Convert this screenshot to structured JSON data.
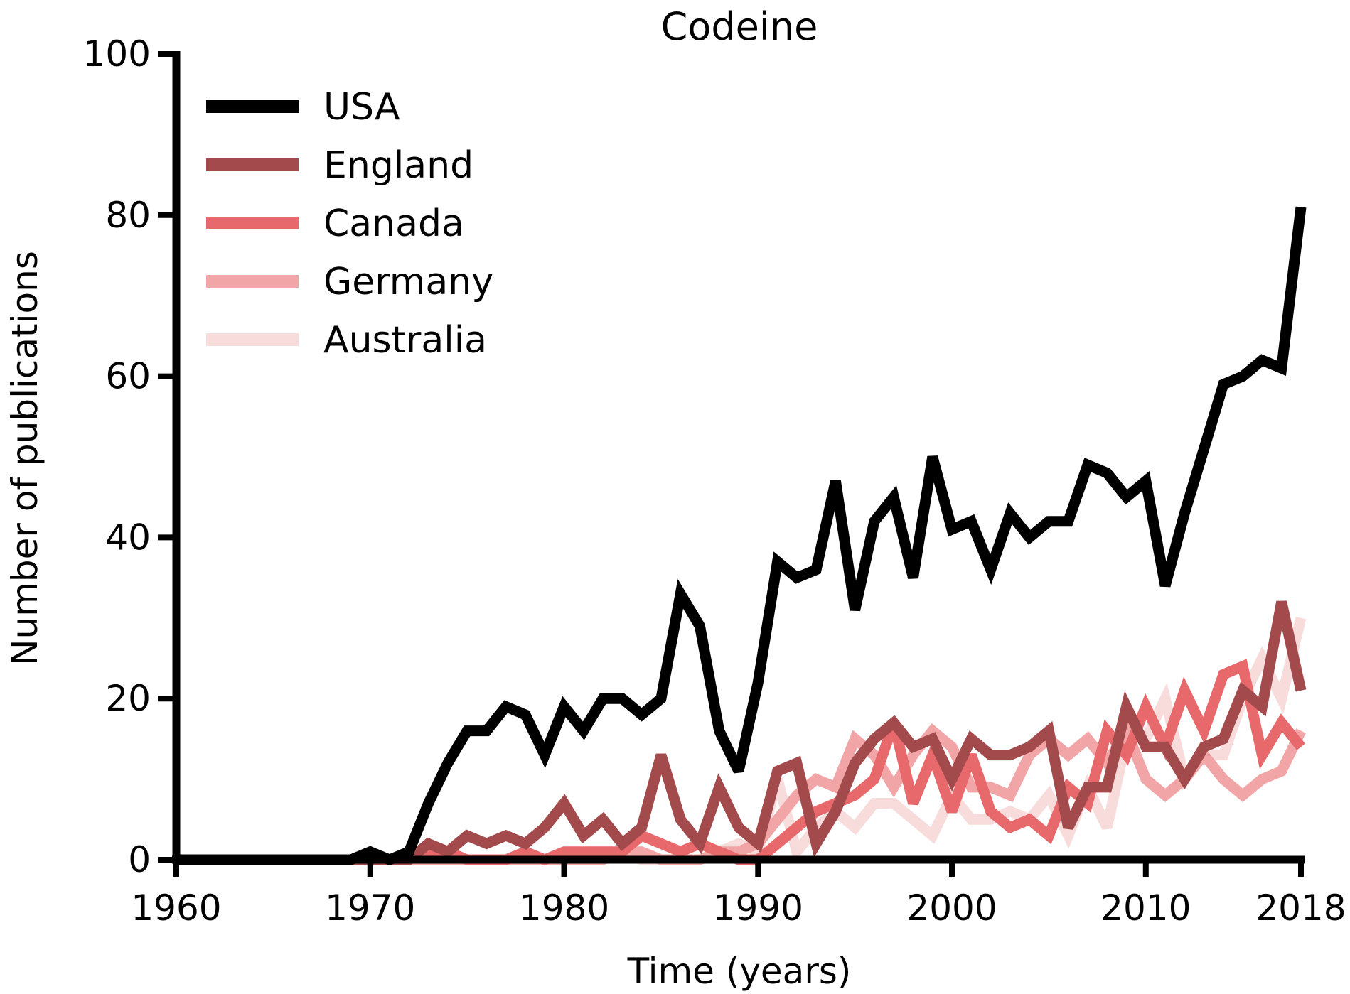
{
  "chart_data": {
    "type": "line",
    "title": "Codeine",
    "xlabel": "Time (years)",
    "ylabel": "Number of publications",
    "xlim": [
      1960,
      2018
    ],
    "ylim": [
      0,
      100
    ],
    "x_ticks": [
      "1960",
      "1970",
      "1980",
      "1990",
      "2000",
      "2010",
      "2018"
    ],
    "y_ticks": [
      "0",
      "20",
      "40",
      "60",
      "80",
      "100"
    ],
    "grid": false,
    "legend_position": "top-left",
    "x": [
      1960,
      1961,
      1962,
      1963,
      1964,
      1965,
      1966,
      1967,
      1968,
      1969,
      1970,
      1971,
      1972,
      1973,
      1974,
      1975,
      1976,
      1977,
      1978,
      1979,
      1980,
      1981,
      1982,
      1983,
      1984,
      1985,
      1986,
      1987,
      1988,
      1989,
      1990,
      1991,
      1992,
      1993,
      1994,
      1995,
      1996,
      1997,
      1998,
      1999,
      2000,
      2001,
      2002,
      2003,
      2004,
      2005,
      2006,
      2007,
      2008,
      2009,
      2010,
      2011,
      2012,
      2013,
      2014,
      2015,
      2016,
      2017,
      2018
    ],
    "series": [
      {
        "name": "USA",
        "color": "#000000",
        "values": [
          0,
          0,
          0,
          0,
          0,
          0,
          0,
          0,
          0,
          0,
          1,
          0,
          1,
          7,
          12,
          16,
          16,
          19,
          18,
          13,
          19,
          16,
          20,
          20,
          18,
          20,
          33,
          29,
          16,
          11,
          22,
          37,
          35,
          36,
          47,
          31,
          42,
          45,
          35,
          50,
          41,
          42,
          36,
          43,
          40,
          42,
          42,
          49,
          48,
          45,
          47,
          34,
          43,
          51,
          59,
          60,
          62,
          61,
          81
        ]
      },
      {
        "name": "England",
        "color": "#a34a4c",
        "values": [
          0,
          0,
          0,
          0,
          0,
          0,
          0,
          0,
          0,
          0,
          0,
          0,
          0,
          2,
          1,
          3,
          2,
          3,
          2,
          4,
          7,
          3,
          5,
          2,
          4,
          13,
          5,
          2,
          9,
          4,
          2,
          11,
          12,
          2,
          6,
          12,
          15,
          17,
          14,
          15,
          10,
          15,
          13,
          13,
          14,
          16,
          4,
          9,
          9,
          19,
          14,
          14,
          10,
          14,
          15,
          21,
          19,
          32,
          21
        ]
      },
      {
        "name": "Canada",
        "color": "#e8696c",
        "values": [
          0,
          0,
          0,
          0,
          0,
          0,
          0,
          0,
          0,
          0,
          0,
          0,
          0,
          1,
          1,
          0,
          0,
          0,
          1,
          0,
          1,
          1,
          1,
          1,
          3,
          2,
          1,
          2,
          1,
          0,
          0,
          2,
          4,
          6,
          7,
          8,
          10,
          17,
          7,
          13,
          6,
          13,
          6,
          4,
          5,
          3,
          9,
          7,
          16,
          13,
          19,
          14,
          21,
          16,
          23,
          24,
          13,
          17,
          14
        ]
      },
      {
        "name": "Germany",
        "color": "#f2a5a6",
        "values": [
          0,
          0,
          0,
          0,
          0,
          0,
          0,
          0,
          0,
          0,
          0,
          0,
          0,
          0,
          0,
          0,
          0,
          0,
          0,
          0,
          0,
          0,
          0,
          1,
          1,
          0,
          0,
          0,
          1,
          1,
          2,
          5,
          8,
          10,
          9,
          15,
          13,
          9,
          13,
          16,
          14,
          9,
          9,
          8,
          13,
          15,
          13,
          15,
          12,
          16,
          10,
          8,
          10,
          13,
          10,
          8,
          10,
          11,
          16
        ]
      },
      {
        "name": "Australia",
        "color": "#f8dcdc",
        "values": [
          0,
          0,
          0,
          0,
          0,
          0,
          0,
          0,
          0,
          0,
          0,
          0,
          0,
          0,
          0,
          0,
          0,
          0,
          0,
          0,
          0,
          0,
          1,
          1,
          0,
          0,
          0,
          0,
          1,
          2,
          1,
          10,
          1,
          4,
          6,
          4,
          7,
          7,
          5,
          3,
          8,
          5,
          5,
          6,
          5,
          8,
          3,
          9,
          4,
          15,
          15,
          20,
          10,
          13,
          13,
          20,
          25,
          20,
          30
        ]
      }
    ]
  }
}
